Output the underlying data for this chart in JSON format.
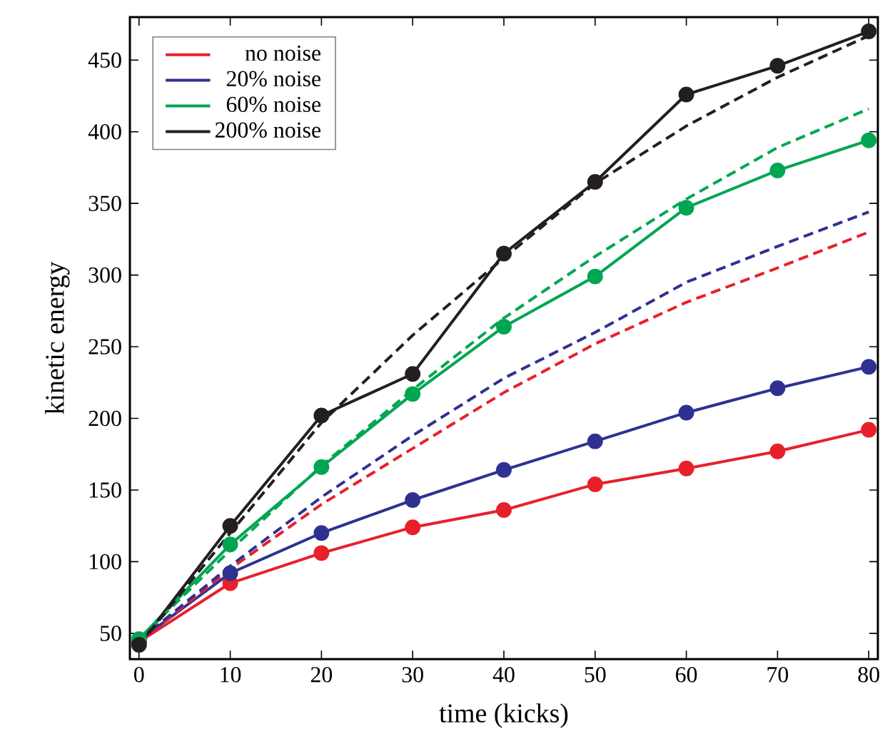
{
  "chart_data": {
    "type": "line",
    "xlabel": "time (kicks)",
    "ylabel": "kinetic energy",
    "x": [
      0,
      10,
      20,
      30,
      40,
      50,
      60,
      70,
      80
    ],
    "xlim": [
      -1,
      81
    ],
    "ylim": [
      32,
      480
    ],
    "xticks": [
      0,
      10,
      20,
      30,
      40,
      50,
      60,
      70,
      80
    ],
    "yticks": [
      50,
      100,
      150,
      200,
      250,
      300,
      350,
      400,
      450
    ],
    "legend": "top left",
    "grid": false,
    "series": [
      {
        "name": "no noise",
        "color": "#e8202a",
        "marker": "circle",
        "line_style": "solid",
        "values": [
          44,
          85,
          106,
          124,
          136,
          154,
          165,
          177,
          192
        ]
      },
      {
        "name": "20% noise",
        "color": "#2e3192",
        "marker": "circle",
        "line_style": "solid",
        "values": [
          45,
          92,
          120,
          143,
          164,
          184,
          204,
          221,
          236
        ]
      },
      {
        "name": "60% noise",
        "color": "#00a651",
        "marker": "circle",
        "line_style": "solid",
        "values": [
          46,
          112,
          166,
          217,
          264,
          299,
          347,
          373,
          394
        ]
      },
      {
        "name": "200% noise",
        "color": "#231f20",
        "marker": "circle",
        "line_style": "solid",
        "values": [
          42,
          125,
          202,
          231,
          315,
          365,
          426,
          446,
          470
        ]
      },
      {
        "color": "#e8202a",
        "marker": "none",
        "line_style": "dashed",
        "values": [
          44,
          95,
          140,
          179,
          218,
          252,
          281,
          305,
          330
        ]
      },
      {
        "color": "#2e3192",
        "marker": "none",
        "line_style": "dashed",
        "values": [
          45,
          97,
          145,
          188,
          228,
          260,
          295,
          320,
          344
        ]
      },
      {
        "color": "#00a651",
        "marker": "none",
        "line_style": "dashed",
        "values": [
          46,
          108,
          167,
          220,
          270,
          313,
          353,
          389,
          416
        ]
      },
      {
        "color": "#231f20",
        "marker": "none",
        "line_style": "dashed",
        "values": [
          42,
          120,
          197,
          258,
          312,
          364,
          404,
          438,
          467
        ]
      }
    ]
  }
}
